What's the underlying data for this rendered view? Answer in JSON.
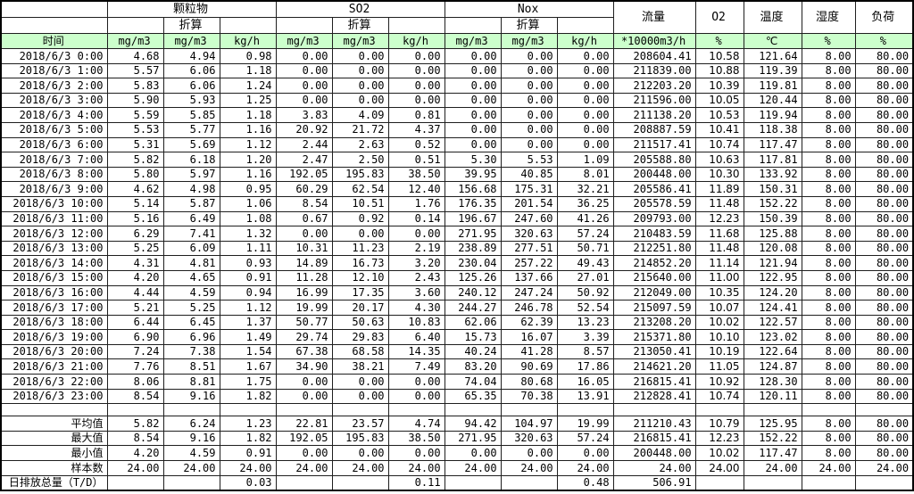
{
  "table": {
    "header": {
      "time_label": "时间",
      "groups": [
        {
          "label": "颗粒物",
          "sub": "折算",
          "units": [
            "mg/m3",
            "mg/m3",
            "kg/h"
          ]
        },
        {
          "label": "SO2",
          "sub": "折算",
          "units": [
            "mg/m3",
            "mg/m3",
            "kg/h"
          ]
        },
        {
          "label": "Nox",
          "sub": "折算",
          "units": [
            "mg/m3",
            "mg/m3",
            "kg/h"
          ]
        }
      ],
      "singles": [
        {
          "label": "流量",
          "unit": "*10000m3/h"
        },
        {
          "label": "O2",
          "unit": "%"
        },
        {
          "label": "温度",
          "unit": "℃"
        },
        {
          "label": "湿度",
          "unit": "%"
        },
        {
          "label": "负荷",
          "unit": "%"
        }
      ]
    },
    "rows": [
      {
        "time": "2018/6/3 0:00",
        "values": [
          "4.68",
          "4.94",
          "0.98",
          "0.00",
          "0.00",
          "0.00",
          "0.00",
          "0.00",
          "0.00",
          "208604.41",
          "10.58",
          "121.64",
          "8.00",
          "80.00"
        ]
      },
      {
        "time": "2018/6/3 1:00",
        "values": [
          "5.57",
          "6.06",
          "1.18",
          "0.00",
          "0.00",
          "0.00",
          "0.00",
          "0.00",
          "0.00",
          "211839.00",
          "10.88",
          "119.39",
          "8.00",
          "80.00"
        ]
      },
      {
        "time": "2018/6/3 2:00",
        "values": [
          "5.83",
          "6.06",
          "1.24",
          "0.00",
          "0.00",
          "0.00",
          "0.00",
          "0.00",
          "0.00",
          "212203.20",
          "10.39",
          "119.81",
          "8.00",
          "80.00"
        ]
      },
      {
        "time": "2018/6/3 3:00",
        "values": [
          "5.90",
          "5.93",
          "1.25",
          "0.00",
          "0.00",
          "0.00",
          "0.00",
          "0.00",
          "0.00",
          "211596.00",
          "10.05",
          "120.44",
          "8.00",
          "80.00"
        ]
      },
      {
        "time": "2018/6/3 4:00",
        "values": [
          "5.59",
          "5.85",
          "1.18",
          "3.83",
          "4.09",
          "0.81",
          "0.00",
          "0.00",
          "0.00",
          "211138.20",
          "10.53",
          "119.94",
          "8.00",
          "80.00"
        ]
      },
      {
        "time": "2018/6/3 5:00",
        "values": [
          "5.53",
          "5.77",
          "1.16",
          "20.92",
          "21.72",
          "4.37",
          "0.00",
          "0.00",
          "0.00",
          "208887.59",
          "10.41",
          "118.38",
          "8.00",
          "80.00"
        ]
      },
      {
        "time": "2018/6/3 6:00",
        "values": [
          "5.31",
          "5.69",
          "1.12",
          "2.44",
          "2.63",
          "0.52",
          "0.00",
          "0.00",
          "0.00",
          "211517.41",
          "10.74",
          "117.47",
          "8.00",
          "80.00"
        ]
      },
      {
        "time": "2018/6/3 7:00",
        "values": [
          "5.82",
          "6.18",
          "1.20",
          "2.47",
          "2.50",
          "0.51",
          "5.30",
          "5.53",
          "1.09",
          "205588.80",
          "10.63",
          "117.81",
          "8.00",
          "80.00"
        ]
      },
      {
        "time": "2018/6/3 8:00",
        "values": [
          "5.80",
          "5.97",
          "1.16",
          "192.05",
          "195.83",
          "38.50",
          "39.95",
          "40.85",
          "8.01",
          "200448.00",
          "10.30",
          "133.92",
          "8.00",
          "80.00"
        ]
      },
      {
        "time": "2018/6/3 9:00",
        "values": [
          "4.62",
          "4.98",
          "0.95",
          "60.29",
          "62.54",
          "12.40",
          "156.68",
          "175.31",
          "32.21",
          "205586.41",
          "11.89",
          "150.31",
          "8.00",
          "80.00"
        ]
      },
      {
        "time": "2018/6/3 10:00",
        "values": [
          "5.14",
          "5.87",
          "1.06",
          "8.54",
          "10.51",
          "1.76",
          "176.35",
          "201.54",
          "36.25",
          "205578.59",
          "11.48",
          "152.22",
          "8.00",
          "80.00"
        ]
      },
      {
        "time": "2018/6/3 11:00",
        "values": [
          "5.16",
          "6.49",
          "1.08",
          "0.67",
          "0.92",
          "0.14",
          "196.67",
          "247.60",
          "41.26",
          "209793.00",
          "12.23",
          "150.39",
          "8.00",
          "80.00"
        ]
      },
      {
        "time": "2018/6/3 12:00",
        "values": [
          "6.29",
          "7.41",
          "1.32",
          "0.00",
          "0.00",
          "0.00",
          "271.95",
          "320.63",
          "57.24",
          "210483.59",
          "11.68",
          "125.88",
          "8.00",
          "80.00"
        ]
      },
      {
        "time": "2018/6/3 13:00",
        "values": [
          "5.25",
          "6.09",
          "1.11",
          "10.31",
          "11.23",
          "2.19",
          "238.89",
          "277.51",
          "50.71",
          "212251.80",
          "11.48",
          "120.08",
          "8.00",
          "80.00"
        ]
      },
      {
        "time": "2018/6/3 14:00",
        "values": [
          "4.31",
          "4.81",
          "0.93",
          "14.89",
          "16.73",
          "3.20",
          "230.04",
          "257.22",
          "49.43",
          "214852.20",
          "11.14",
          "121.94",
          "8.00",
          "80.00"
        ]
      },
      {
        "time": "2018/6/3 15:00",
        "values": [
          "4.20",
          "4.65",
          "0.91",
          "11.28",
          "12.10",
          "2.43",
          "125.26",
          "137.66",
          "27.01",
          "215640.00",
          "11.00",
          "122.95",
          "8.00",
          "80.00"
        ]
      },
      {
        "time": "2018/6/3 16:00",
        "values": [
          "4.44",
          "4.59",
          "0.94",
          "16.99",
          "17.35",
          "3.60",
          "240.12",
          "247.24",
          "50.92",
          "212049.00",
          "10.35",
          "124.20",
          "8.00",
          "80.00"
        ]
      },
      {
        "time": "2018/6/3 17:00",
        "values": [
          "5.21",
          "5.25",
          "1.12",
          "19.99",
          "20.17",
          "4.30",
          "244.27",
          "246.78",
          "52.54",
          "215097.59",
          "10.07",
          "124.41",
          "8.00",
          "80.00"
        ]
      },
      {
        "time": "2018/6/3 18:00",
        "values": [
          "6.44",
          "6.45",
          "1.37",
          "50.77",
          "50.63",
          "10.83",
          "62.06",
          "62.39",
          "13.23",
          "213208.20",
          "10.02",
          "122.57",
          "8.00",
          "80.00"
        ]
      },
      {
        "time": "2018/6/3 19:00",
        "values": [
          "6.90",
          "6.96",
          "1.49",
          "29.74",
          "29.83",
          "6.40",
          "15.73",
          "16.07",
          "3.39",
          "215371.80",
          "10.10",
          "123.02",
          "8.00",
          "80.00"
        ]
      },
      {
        "time": "2018/6/3 20:00",
        "values": [
          "7.24",
          "7.38",
          "1.54",
          "67.38",
          "68.58",
          "14.35",
          "40.24",
          "41.28",
          "8.57",
          "213050.41",
          "10.19",
          "122.64",
          "8.00",
          "80.00"
        ]
      },
      {
        "time": "2018/6/3 21:00",
        "values": [
          "7.76",
          "8.51",
          "1.67",
          "34.90",
          "38.21",
          "7.49",
          "83.20",
          "90.69",
          "17.86",
          "214621.20",
          "11.05",
          "124.87",
          "8.00",
          "80.00"
        ]
      },
      {
        "time": "2018/6/3 22:00",
        "values": [
          "8.06",
          "8.81",
          "1.75",
          "0.00",
          "0.00",
          "0.00",
          "74.04",
          "80.68",
          "16.05",
          "216815.41",
          "10.92",
          "128.30",
          "8.00",
          "80.00"
        ]
      },
      {
        "time": "2018/6/3 23:00",
        "values": [
          "8.54",
          "9.16",
          "1.82",
          "0.00",
          "0.00",
          "0.00",
          "65.35",
          "70.38",
          "13.91",
          "212828.41",
          "10.74",
          "120.11",
          "8.00",
          "80.00"
        ]
      }
    ],
    "summary": [
      {
        "label": "平均值",
        "align": "right",
        "values": [
          "5.82",
          "6.24",
          "1.23",
          "22.81",
          "23.57",
          "4.74",
          "94.42",
          "104.97",
          "19.99",
          "211210.43",
          "10.79",
          "125.95",
          "8.00",
          "80.00"
        ]
      },
      {
        "label": "最大值",
        "align": "right",
        "values": [
          "8.54",
          "9.16",
          "1.82",
          "192.05",
          "195.83",
          "38.50",
          "271.95",
          "320.63",
          "57.24",
          "216815.41",
          "12.23",
          "152.22",
          "8.00",
          "80.00"
        ]
      },
      {
        "label": "最小值",
        "align": "right",
        "values": [
          "4.20",
          "4.59",
          "0.91",
          "0.00",
          "0.00",
          "0.00",
          "0.00",
          "0.00",
          "0.00",
          "200448.00",
          "10.02",
          "117.47",
          "8.00",
          "80.00"
        ]
      },
      {
        "label": "样本数",
        "align": "right",
        "values": [
          "24.00",
          "24.00",
          "24.00",
          "24.00",
          "24.00",
          "24.00",
          "24.00",
          "24.00",
          "24.00",
          "24.00",
          "24.00",
          "24.00",
          "24.00",
          "24.00"
        ]
      },
      {
        "label": "日排放总量（T/D）",
        "align": "left",
        "values": [
          "",
          "",
          "0.03",
          "",
          "",
          "0.11",
          "",
          "",
          "0.48",
          "506.91",
          "",
          "",
          "",
          ""
        ]
      }
    ]
  }
}
